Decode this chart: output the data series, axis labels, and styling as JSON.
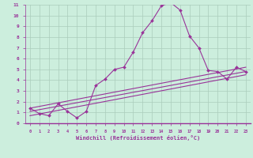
{
  "xlabel": "Windchill (Refroidissement éolien,°C)",
  "background_color": "#cceedd",
  "grid_color": "#aaccbb",
  "line_color": "#993399",
  "xlim": [
    -0.5,
    23.5
  ],
  "ylim": [
    0,
    11
  ],
  "xtick_vals": [
    0,
    1,
    2,
    3,
    4,
    5,
    6,
    7,
    8,
    9,
    10,
    11,
    12,
    13,
    14,
    15,
    16,
    17,
    18,
    19,
    20,
    21,
    22,
    23
  ],
  "ytick_vals": [
    0,
    1,
    2,
    3,
    4,
    5,
    6,
    7,
    8,
    9,
    10,
    11
  ],
  "series_main": {
    "x": [
      0,
      1,
      2,
      3,
      4,
      5,
      6,
      7,
      8,
      9,
      10,
      11,
      12,
      13,
      14,
      15,
      16,
      17,
      18,
      19,
      20,
      21,
      22,
      23
    ],
    "y": [
      1.4,
      0.9,
      0.7,
      1.8,
      1.1,
      0.5,
      1.1,
      3.5,
      4.1,
      5.0,
      5.2,
      6.6,
      8.4,
      9.5,
      10.9,
      11.2,
      10.5,
      8.1,
      7.0,
      4.9,
      4.8,
      4.1,
      5.2,
      4.8
    ]
  },
  "series_lines": [
    {
      "x": [
        0,
        23
      ],
      "y": [
        1.4,
        5.2
      ]
    },
    {
      "x": [
        0,
        23
      ],
      "y": [
        1.1,
        4.8
      ]
    },
    {
      "x": [
        0,
        23
      ],
      "y": [
        0.7,
        4.5
      ]
    }
  ]
}
